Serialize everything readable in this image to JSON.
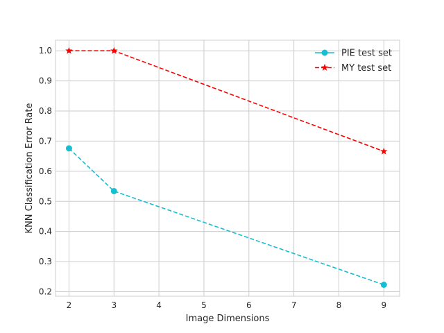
{
  "chart_data": {
    "type": "line",
    "title": "",
    "xlabel": "Image Dimensions",
    "ylabel": "KNN Classification Error Rate",
    "xlim": [
      1.7,
      9.35
    ],
    "ylim": [
      0.185,
      1.035
    ],
    "xticks": [
      2,
      3,
      4,
      5,
      6,
      7,
      8,
      9
    ],
    "yticks": [
      0.2,
      0.3,
      0.4,
      0.5,
      0.6,
      0.7,
      0.8,
      0.9,
      1.0
    ],
    "yticklabels": [
      "0.2",
      "0.3",
      "0.4",
      "0.5",
      "0.6",
      "0.7",
      "0.8",
      "0.9",
      "1.0"
    ],
    "grid": true,
    "legend_position": "top-right",
    "series": [
      {
        "name": "PIE test set",
        "color": "#17becf",
        "marker": "circle",
        "linestyle": "dashed",
        "x": [
          2,
          3,
          9
        ],
        "values": [
          0.676,
          0.534,
          0.223
        ]
      },
      {
        "name": "MY test set",
        "color": "#ff0000",
        "marker": "star",
        "linestyle": "dashed",
        "x": [
          2,
          3,
          9
        ],
        "values": [
          1.0,
          1.0,
          0.666
        ]
      }
    ]
  }
}
